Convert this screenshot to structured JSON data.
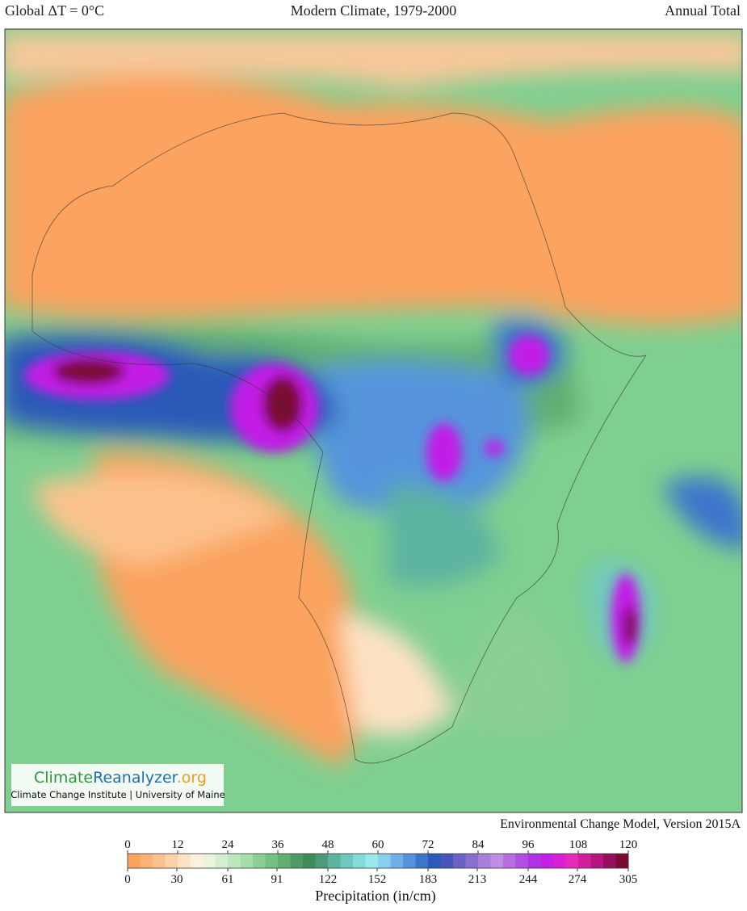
{
  "header": {
    "left": "Global ΔT = 0°C",
    "center": "Modern Climate, 1979-2000",
    "right": "Annual Total"
  },
  "logo": {
    "climate": "Climate",
    "reanalyzer": "Reanalyzer",
    "org": ".org",
    "subtitle": "Climate Change Institute | University of Maine"
  },
  "footer": "Environmental Change Model, Version 2015A",
  "legend": {
    "label": "Precipitation (in/cm)",
    "range_in": [
      0,
      120
    ],
    "range_cm": [
      0,
      305
    ],
    "ticks_in": [
      0,
      12,
      24,
      36,
      48,
      60,
      72,
      84,
      96,
      108,
      120
    ],
    "ticks_cm": [
      0,
      30,
      61,
      91,
      122,
      152,
      183,
      213,
      244,
      274,
      305
    ],
    "colors": [
      "#fba35f",
      "#fbb275",
      "#fcc28d",
      "#fcd2a8",
      "#fde2c3",
      "#fdf0dd",
      "#eaf5e0",
      "#d3efd0",
      "#bde8bf",
      "#a5deab",
      "#8ccf95",
      "#76c083",
      "#62ae73",
      "#4f9b66",
      "#418a5c",
      "#4c9a7a",
      "#5cb3a0",
      "#6fc9c0",
      "#84dcd9",
      "#9ae8ec",
      "#88cfee",
      "#6fb1e6",
      "#5594dc",
      "#3c75cc",
      "#2b5ab8",
      "#4656b8",
      "#6a62c4",
      "#8b70d0",
      "#a87fda",
      "#c28ee3",
      "#b86de2",
      "#b04fe2",
      "#b132e5",
      "#c21ee6",
      "#d81fd4",
      "#e82ab8",
      "#d2209c",
      "#b51680",
      "#950f5c",
      "#7a0a33"
    ]
  }
}
